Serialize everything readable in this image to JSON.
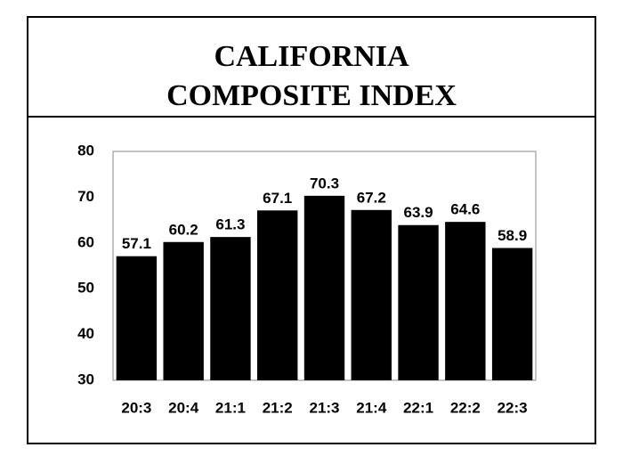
{
  "chart_data": {
    "type": "bar",
    "title": "CALIFORNIA COMPOSITE INDEX",
    "categories": [
      "20:3",
      "20:4",
      "21:1",
      "21:2",
      "21:3",
      "21:4",
      "22:1",
      "22:2",
      "22:3"
    ],
    "values": [
      57.1,
      60.2,
      61.3,
      67.1,
      70.3,
      67.2,
      63.9,
      64.6,
      58.9
    ],
    "color": "#000000",
    "ylim": [
      30,
      80
    ],
    "yticks": [
      30,
      40,
      50,
      60,
      70,
      80
    ],
    "grid": false
  }
}
